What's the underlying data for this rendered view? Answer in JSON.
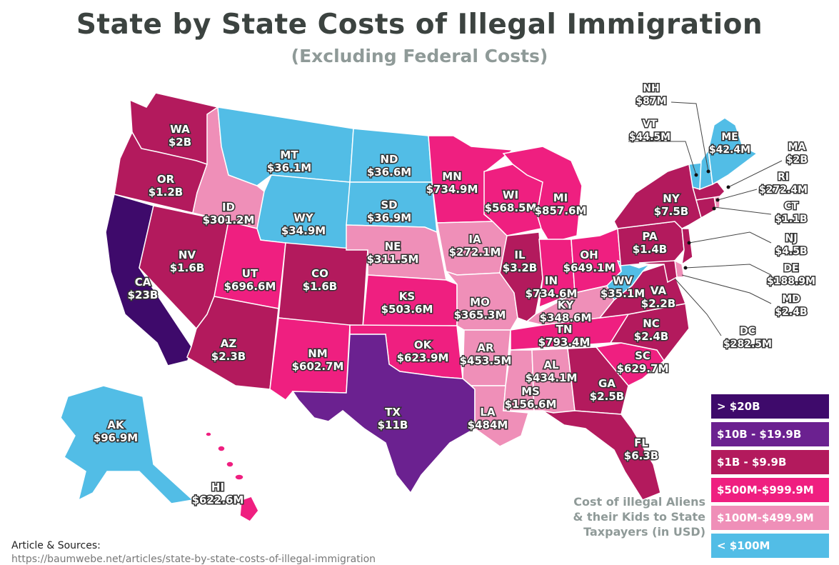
{
  "title": "State by State Costs of Illegal Immigration",
  "subtitle": "(Excluding Federal Costs)",
  "colors": {
    "gt20b": "#3e0a6b",
    "10to20b": "#6b2190",
    "1to10b": "#b31a5d",
    "500mto1b": "#ef1f80",
    "100mto500m": "#ef8fb8",
    "lt100m": "#52bde6"
  },
  "legend": {
    "items": [
      {
        "label": "> $20B",
        "color": "#3e0a6b"
      },
      {
        "label": "$10B - $19.9B",
        "color": "#6b2190"
      },
      {
        "label": "$1B - $9.9B",
        "color": "#b31a5d"
      },
      {
        "label": "$500M-$999.9M",
        "color": "#ef1f80"
      },
      {
        "label": "$100M-$499.9M",
        "color": "#ef8fb8"
      },
      {
        "label": "< $100M",
        "color": "#52bde6"
      }
    ],
    "caption_line1": "Cost of illegal Aliens",
    "caption_line2": "& their Kids to State",
    "caption_line3": "Taxpayers (in USD)"
  },
  "sources_label": "Article & Sources:",
  "sources_url": "https://baumwebe.net/articles/state-by-state-costs-of-illegal-immigration",
  "states": {
    "WA": {
      "abbr": "WA",
      "value": "$2B"
    },
    "OR": {
      "abbr": "OR",
      "value": "$1.2B"
    },
    "CA": {
      "abbr": "CA",
      "value": "$23B"
    },
    "NV": {
      "abbr": "NV",
      "value": "$1.6B"
    },
    "ID": {
      "abbr": "ID",
      "value": "$301.2M"
    },
    "MT": {
      "abbr": "MT",
      "value": "$36.1M"
    },
    "WY": {
      "abbr": "WY",
      "value": "$34.9M"
    },
    "UT": {
      "abbr": "UT",
      "value": "$696.6M"
    },
    "AZ": {
      "abbr": "AZ",
      "value": "$2.3B"
    },
    "CO": {
      "abbr": "CO",
      "value": "$1.6B"
    },
    "NM": {
      "abbr": "NM",
      "value": "$602.7M"
    },
    "ND": {
      "abbr": "ND",
      "value": "$36.6M"
    },
    "SD": {
      "abbr": "SD",
      "value": "$36.9M"
    },
    "NE": {
      "abbr": "NE",
      "value": "$311.5M"
    },
    "KS": {
      "abbr": "KS",
      "value": "$503.6M"
    },
    "OK": {
      "abbr": "OK",
      "value": "$623.9M"
    },
    "TX": {
      "abbr": "TX",
      "value": "$11B"
    },
    "MN": {
      "abbr": "MN",
      "value": "$734.9M"
    },
    "IA": {
      "abbr": "IA",
      "value": "$272.1M"
    },
    "MO": {
      "abbr": "MO",
      "value": "$365.3M"
    },
    "AR": {
      "abbr": "AR",
      "value": "$453.5M"
    },
    "LA": {
      "abbr": "LA",
      "value": "$484M"
    },
    "WI": {
      "abbr": "WI",
      "value": "$568.5M"
    },
    "IL": {
      "abbr": "IL",
      "value": "$3.2B"
    },
    "MI": {
      "abbr": "MI",
      "value": "$857.6M"
    },
    "IN": {
      "abbr": "IN",
      "value": "$734.6M"
    },
    "OH": {
      "abbr": "OH",
      "value": "$649.1M"
    },
    "KY": {
      "abbr": "KY",
      "value": "$348.6M"
    },
    "TN": {
      "abbr": "TN",
      "value": "$793.4M"
    },
    "MS": {
      "abbr": "MS",
      "value": "$156.6M"
    },
    "AL": {
      "abbr": "AL",
      "value": "$434.1M"
    },
    "GA": {
      "abbr": "GA",
      "value": "$2.5B"
    },
    "FL": {
      "abbr": "FL",
      "value": "$6.3B"
    },
    "SC": {
      "abbr": "SC",
      "value": "$629.7M"
    },
    "NC": {
      "abbr": "NC",
      "value": "$2.4B"
    },
    "VA": {
      "abbr": "VA",
      "value": "$2.2B"
    },
    "WV": {
      "abbr": "WV",
      "value": "$35.1M"
    },
    "PA": {
      "abbr": "PA",
      "value": "$1.4B"
    },
    "NY": {
      "abbr": "NY",
      "value": "$7.5B"
    },
    "ME": {
      "abbr": "ME",
      "value": "$42.4M"
    },
    "NH": {
      "abbr": "NH",
      "value": "$87M"
    },
    "VT": {
      "abbr": "VT",
      "value": "$44.5M"
    },
    "MA": {
      "abbr": "MA",
      "value": "$2B"
    },
    "RI": {
      "abbr": "RI",
      "value": "$272.4M"
    },
    "CT": {
      "abbr": "CT",
      "value": "$1.1B"
    },
    "NJ": {
      "abbr": "NJ",
      "value": "$4.5B"
    },
    "DE": {
      "abbr": "DE",
      "value": "$188.9M"
    },
    "MD": {
      "abbr": "MD",
      "value": "$2.4B"
    },
    "DC": {
      "abbr": "DC",
      "value": "$282.5M"
    },
    "AK": {
      "abbr": "AK",
      "value": "$96.9M"
    },
    "HI": {
      "abbr": "HI",
      "value": "$622.6M"
    }
  }
}
